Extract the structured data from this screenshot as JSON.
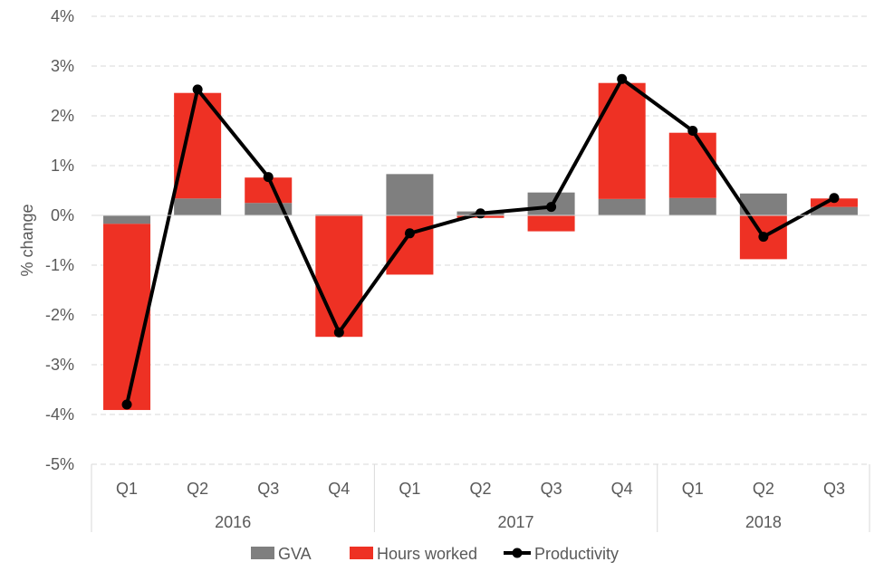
{
  "chart_data": {
    "type": "bar",
    "stacked": true,
    "ylabel": "% change",
    "xlabel": "",
    "ylim": [
      -5,
      4
    ],
    "yticks": [
      4,
      3,
      2,
      1,
      0,
      -1,
      -2,
      -3,
      -4,
      -5
    ],
    "ytick_labels": [
      "4%",
      "3%",
      "2%",
      "1%",
      "0%",
      "-1%",
      "-2%",
      "-3%",
      "-4%",
      "-5%"
    ],
    "grid": true,
    "legend_position": "bottom",
    "categories": [
      "Q1",
      "Q2",
      "Q3",
      "Q4",
      "Q1",
      "Q2",
      "Q3",
      "Q4",
      "Q1",
      "Q2",
      "Q3"
    ],
    "groups": [
      {
        "label": "2016",
        "count": 4
      },
      {
        "label": "2017",
        "count": 4
      },
      {
        "label": "2018",
        "count": 3
      }
    ],
    "series": [
      {
        "name": "GVA",
        "kind": "bar",
        "color": "#7f7f7f",
        "values": [
          -0.17,
          0.34,
          0.25,
          0.02,
          0.83,
          0.08,
          0.46,
          0.33,
          0.35,
          0.44,
          0.17
        ]
      },
      {
        "name": "Hours worked",
        "kind": "bar",
        "color": "#ee3124",
        "values": [
          -3.74,
          2.12,
          0.51,
          -2.44,
          -1.19,
          -0.05,
          -0.32,
          2.33,
          1.31,
          -0.88,
          0.17
        ]
      },
      {
        "name": "Productivity",
        "kind": "line",
        "color": "#000000",
        "values": [
          -3.8,
          2.53,
          0.77,
          -2.35,
          -0.36,
          0.04,
          0.17,
          2.74,
          1.7,
          -0.43,
          0.35
        ]
      }
    ]
  }
}
